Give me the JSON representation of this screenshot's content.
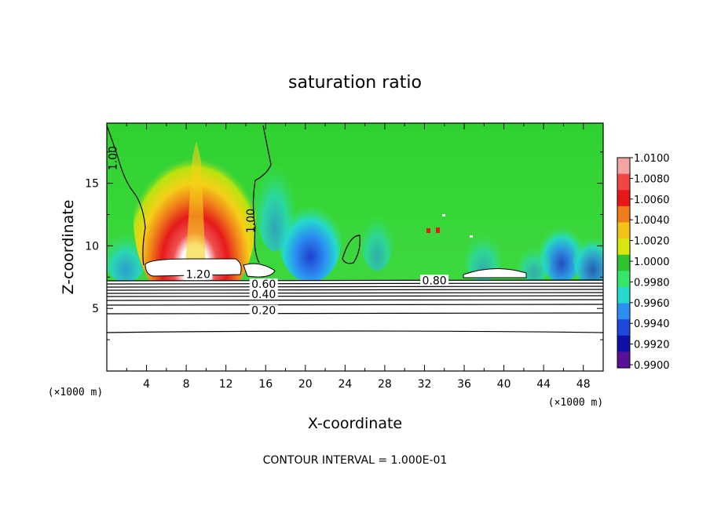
{
  "chart_data": {
    "type": "heatmap",
    "title": "saturation ratio",
    "xlabel": "X-coordinate",
    "ylabel": "Z-coordinate",
    "x_unit": "(×1000 m)",
    "y_unit": "(×1000 m)",
    "xlim": [
      0,
      50
    ],
    "ylim": [
      0,
      19.8
    ],
    "x_ticks": [
      "4",
      "8",
      "12",
      "16",
      "20",
      "24",
      "28",
      "32",
      "36",
      "40",
      "44",
      "48"
    ],
    "x_tick_values": [
      4,
      8,
      12,
      16,
      20,
      24,
      28,
      32,
      36,
      40,
      44,
      48
    ],
    "y_ticks": [
      "5",
      "10",
      "15"
    ],
    "y_tick_values": [
      5,
      10,
      15
    ],
    "colorbar": {
      "labels": [
        "1.0100",
        "1.0080",
        "1.0060",
        "1.0040",
        "1.0020",
        "1.0000",
        "0.9980",
        "0.9960",
        "0.9940",
        "0.9920",
        "0.9900"
      ],
      "colors": [
        "#f5a3a3",
        "#f24545",
        "#e81818",
        "#f07b1a",
        "#f5c318",
        "#d7e80f",
        "#2ec42e",
        "#36e66a",
        "#25d8d0",
        "#2b8ff2",
        "#1f47d9",
        "#1010a8",
        "#5a0f9a"
      ]
    },
    "contour_labels": [
      {
        "text": "1.00",
        "x": 0.9,
        "z": 17.0
      },
      {
        "text": "1.00",
        "x": 14.8,
        "z": 12.0
      },
      {
        "text": "1.20",
        "x": 9.2,
        "z": 7.5
      },
      {
        "text": "0.60",
        "x": 15.8,
        "z": 6.7
      },
      {
        "text": "0.40",
        "x": 15.8,
        "z": 5.9
      },
      {
        "text": "0.20",
        "x": 15.8,
        "z": 4.6
      },
      {
        "text": "0.80",
        "x": 33.0,
        "z": 7.0
      }
    ],
    "contour_interval_text": "CONTOUR INTERVAL = 1.000E-01",
    "grid": false,
    "legend": "colorbar-right"
  }
}
